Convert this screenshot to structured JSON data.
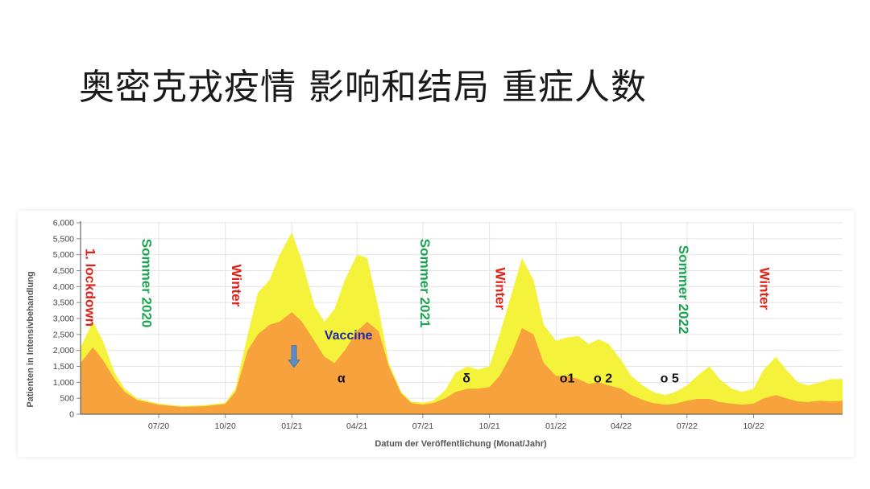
{
  "slide": {
    "title": "奥密克戎疫情 影响和结局 重症人数"
  },
  "colors": {
    "outer_series": "#f4f23a",
    "inner_series": "#f7a23c",
    "red_label": "#e32119",
    "green_label": "#1aa452",
    "vaccine_text": "#1d2aa6",
    "vaccine_arrow": "#5b8ec9",
    "grid": "#e4e4e4"
  },
  "chart_data": {
    "type": "area",
    "xlabel": "Datum der Veröffentlichung (Monat/Jahr)",
    "ylabel": "Patienten in Intensivbehandlung",
    "ylim": [
      0,
      6000
    ],
    "yticks": [
      0,
      500,
      1000,
      1500,
      2000,
      2500,
      3000,
      3500,
      4000,
      4500,
      5000,
      5500,
      6000
    ],
    "ytick_labels": [
      "0",
      "500",
      "1,000",
      "1,500",
      "2,000",
      "2,500",
      "3,000",
      "3,500",
      "4,000",
      "4,500",
      "5,000",
      "5,500",
      "6,000"
    ],
    "xlim": [
      "2020-03-15",
      "2023-02-01"
    ],
    "xticks": [
      "2020-07-01",
      "2020-10-01",
      "2021-01-01",
      "2021-04-01",
      "2021-07-01",
      "2021-10-01",
      "2022-01-01",
      "2022-04-01",
      "2022-07-01",
      "2022-10-01"
    ],
    "xtick_labels": [
      "07/20",
      "10/20",
      "01/21",
      "04/21",
      "07/21",
      "10/21",
      "01/22",
      "04/22",
      "07/22",
      "10/22"
    ],
    "grid": true,
    "series": [
      {
        "color": "#f4f23a",
        "x": [
          "2020-03-15",
          "2020-04-01",
          "2020-04-15",
          "2020-05-01",
          "2020-05-15",
          "2020-06-01",
          "2020-07-01",
          "2020-08-01",
          "2020-09-01",
          "2020-10-01",
          "2020-10-15",
          "2020-11-01",
          "2020-11-15",
          "2020-12-01",
          "2020-12-15",
          "2021-01-01",
          "2021-01-15",
          "2021-02-01",
          "2021-02-15",
          "2021-03-01",
          "2021-03-15",
          "2021-04-01",
          "2021-04-15",
          "2021-05-01",
          "2021-05-15",
          "2021-06-01",
          "2021-06-15",
          "2021-07-01",
          "2021-07-15",
          "2021-08-01",
          "2021-08-15",
          "2021-09-01",
          "2021-09-15",
          "2021-10-01",
          "2021-10-15",
          "2021-11-01",
          "2021-11-15",
          "2021-12-01",
          "2021-12-15",
          "2022-01-01",
          "2022-01-15",
          "2022-02-01",
          "2022-02-15",
          "2022-03-01",
          "2022-03-15",
          "2022-04-01",
          "2022-04-15",
          "2022-05-01",
          "2022-05-15",
          "2022-06-01",
          "2022-06-15",
          "2022-07-01",
          "2022-07-15",
          "2022-08-01",
          "2022-08-15",
          "2022-09-01",
          "2022-09-15",
          "2022-10-01",
          "2022-10-15",
          "2022-11-01",
          "2022-11-15",
          "2022-12-01",
          "2022-12-15",
          "2023-01-01",
          "2023-01-15",
          "2023-02-01"
        ],
        "values": [
          2100,
          2900,
          2300,
          1300,
          800,
          500,
          330,
          260,
          280,
          360,
          800,
          2500,
          3800,
          4200,
          5000,
          5700,
          4800,
          3400,
          2900,
          3300,
          4200,
          5000,
          4900,
          3300,
          1600,
          700,
          400,
          360,
          420,
          750,
          1300,
          1500,
          1400,
          1500,
          2500,
          3800,
          4900,
          4200,
          2800,
          2300,
          2400,
          2450,
          2200,
          2350,
          2200,
          1700,
          1200,
          900,
          700,
          600,
          700,
          900,
          1200,
          1500,
          1100,
          800,
          700,
          800,
          1400,
          1800,
          1400,
          1000,
          900,
          1000,
          1100,
          1100
        ]
      },
      {
        "color": "#f7a23c",
        "x": [
          "2020-03-15",
          "2020-04-01",
          "2020-04-15",
          "2020-05-01",
          "2020-05-15",
          "2020-06-01",
          "2020-07-01",
          "2020-08-01",
          "2020-09-01",
          "2020-10-01",
          "2020-10-15",
          "2020-11-01",
          "2020-11-15",
          "2020-12-01",
          "2020-12-15",
          "2021-01-01",
          "2021-01-15",
          "2021-02-01",
          "2021-02-15",
          "2021-03-01",
          "2021-03-15",
          "2021-04-01",
          "2021-04-15",
          "2021-05-01",
          "2021-05-15",
          "2021-06-01",
          "2021-06-15",
          "2021-07-01",
          "2021-07-15",
          "2021-08-01",
          "2021-08-15",
          "2021-09-01",
          "2021-09-15",
          "2021-10-01",
          "2021-10-15",
          "2021-11-01",
          "2021-11-15",
          "2021-12-01",
          "2021-12-15",
          "2022-01-01",
          "2022-01-15",
          "2022-02-01",
          "2022-02-15",
          "2022-03-01",
          "2022-03-15",
          "2022-04-01",
          "2022-04-15",
          "2022-05-01",
          "2022-05-15",
          "2022-06-01",
          "2022-06-15",
          "2022-07-01",
          "2022-07-15",
          "2022-08-01",
          "2022-08-15",
          "2022-09-01",
          "2022-09-15",
          "2022-10-01",
          "2022-10-15",
          "2022-11-01",
          "2022-11-15",
          "2022-12-01",
          "2022-12-15",
          "2023-01-01",
          "2023-01-15",
          "2023-02-01"
        ],
        "values": [
          1600,
          2100,
          1700,
          1100,
          700,
          450,
          300,
          230,
          250,
          320,
          700,
          2000,
          2500,
          2800,
          2900,
          3200,
          2900,
          2300,
          1800,
          1600,
          2000,
          2600,
          2900,
          2600,
          1500,
          650,
          350,
          300,
          350,
          500,
          700,
          800,
          800,
          850,
          1200,
          1900,
          2700,
          2500,
          1600,
          1200,
          1200,
          1100,
          950,
          1000,
          900,
          800,
          600,
          450,
          350,
          300,
          330,
          420,
          480,
          480,
          380,
          330,
          300,
          330,
          500,
          600,
          500,
          400,
          380,
          420,
          400,
          420
        ]
      }
    ],
    "annotations": [
      {
        "text": "1. lockdown",
        "color": "#e32119",
        "x": "2020-03-22",
        "y": 5200,
        "rotation": 90
      },
      {
        "text": "Sommer 2020",
        "color": "#1aa452",
        "x": "2020-06-08",
        "y": 5500,
        "rotation": 90
      },
      {
        "text": "Winter",
        "color": "#e32119",
        "x": "2020-10-10",
        "y": 4700,
        "rotation": 90
      },
      {
        "text": "Sommer 2021",
        "color": "#1aa452",
        "x": "2021-06-28",
        "y": 5500,
        "rotation": 90
      },
      {
        "text": "Winter",
        "color": "#e32119",
        "x": "2021-10-10",
        "y": 4600,
        "rotation": 90
      },
      {
        "text": "Sommer 2022",
        "color": "#1aa452",
        "x": "2022-06-20",
        "y": 5300,
        "rotation": 90
      },
      {
        "text": "Winter",
        "color": "#e32119",
        "x": "2022-10-10",
        "y": 4600,
        "rotation": 90
      },
      {
        "text": "Vaccine",
        "color": "#1d2aa6",
        "x": "2021-02-15",
        "y": 2350,
        "rotation": 0
      },
      {
        "text": "α",
        "color": "#111111",
        "x": "2021-03-05",
        "y": 1000,
        "rotation": 0
      },
      {
        "text": "δ",
        "color": "#111111",
        "x": "2021-08-25",
        "y": 1000,
        "rotation": 0
      },
      {
        "text": "o1",
        "color": "#111111",
        "x": "2022-01-06",
        "y": 1000,
        "rotation": 0
      },
      {
        "text": "o 2",
        "color": "#111111",
        "x": "2022-02-22",
        "y": 1000,
        "rotation": 0
      },
      {
        "text": "o 5",
        "color": "#111111",
        "x": "2022-05-25",
        "y": 1000,
        "rotation": 0
      }
    ]
  }
}
